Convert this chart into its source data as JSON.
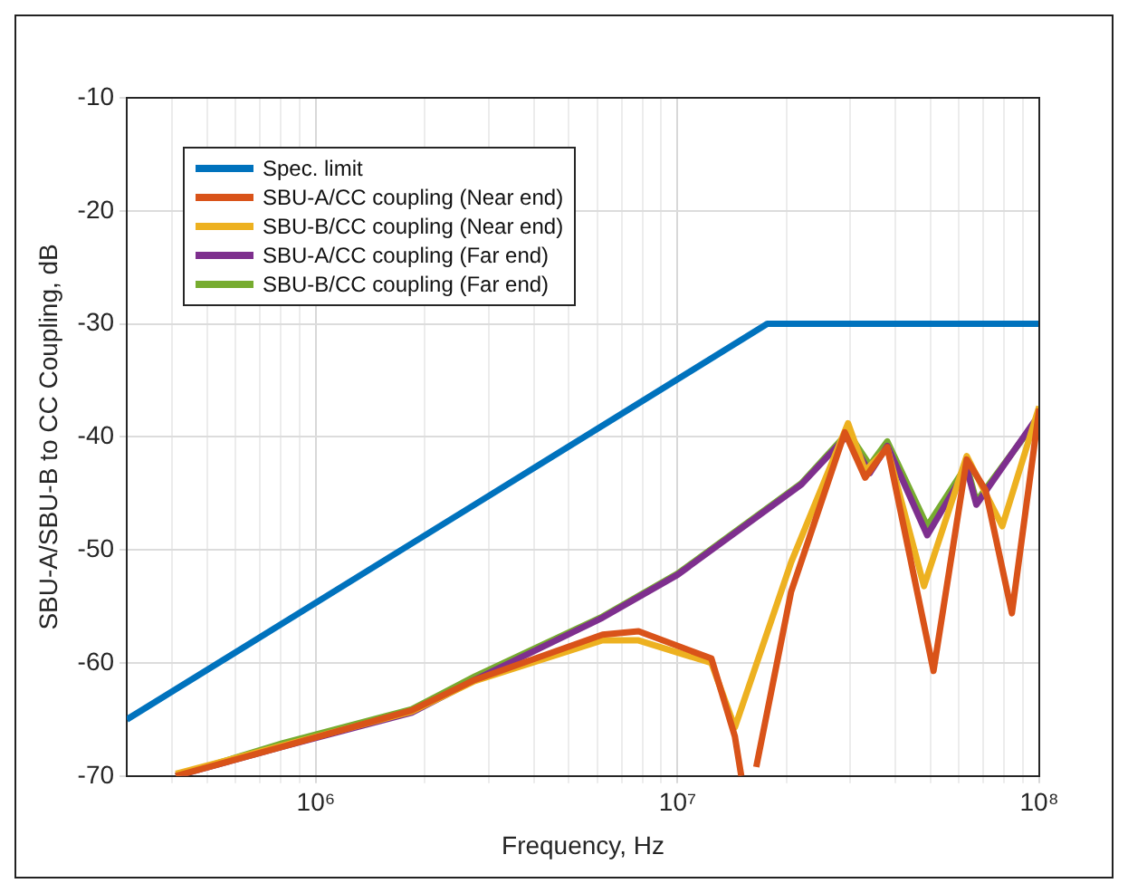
{
  "chart_data": {
    "type": "line",
    "xlabel": "Frequency, Hz",
    "ylabel": "SBU-A/SBU-B to CC Coupling, dB",
    "log": "x",
    "grid": true,
    "legend": "top left",
    "marker": "none",
    "line_style": "solid",
    "xlim": [
      300000,
      100000000
    ],
    "xticks": [
      {
        "value": 400000,
        "label": null
      },
      {
        "value": 500000,
        "label": null
      },
      {
        "value": 600000,
        "label": null
      },
      {
        "value": 700000,
        "label": null
      },
      {
        "value": 800000,
        "label": null
      },
      {
        "value": 900000,
        "label": null
      },
      {
        "value": 1000000,
        "label": "10⁶"
      },
      {
        "value": 2000000,
        "label": null
      },
      {
        "value": 3000000,
        "label": null
      },
      {
        "value": 4000000,
        "label": null
      },
      {
        "value": 5000000,
        "label": null
      },
      {
        "value": 6000000,
        "label": null
      },
      {
        "value": 7000000,
        "label": null
      },
      {
        "value": 8000000,
        "label": null
      },
      {
        "value": 9000000,
        "label": null
      },
      {
        "value": 10000000,
        "label": "10⁷"
      },
      {
        "value": 20000000,
        "label": null
      },
      {
        "value": 30000000,
        "label": null
      },
      {
        "value": 40000000,
        "label": null
      },
      {
        "value": 50000000,
        "label": null
      },
      {
        "value": 60000000,
        "label": null
      },
      {
        "value": 70000000,
        "label": null
      },
      {
        "value": 80000000,
        "label": null
      },
      {
        "value": 90000000,
        "label": null
      },
      {
        "value": 100000000,
        "label": "10⁸"
      }
    ],
    "ylim": [
      -70,
      -10
    ],
    "yticks": [
      -70,
      -60,
      -50,
      -40,
      -30,
      -20,
      -10
    ],
    "series": [
      {
        "name": "Spec. limit",
        "color": "#0072bd",
        "x": [
          300000,
          17700000,
          100000000
        ],
        "values": [
          -65,
          -30,
          -30
        ]
      },
      {
        "name": "SBU-A/CC coupling (Near end)",
        "color": "#d95319",
        "x": [
          410000,
          810000,
          1840000,
          2750000,
          6200000,
          7800000,
          12400000,
          14400000,
          15000000,
          16000000,
          16500000,
          20600000,
          29000000,
          33000000,
          38000000,
          51000000,
          63000000,
          71000000,
          84000000,
          100000000
        ],
        "values": [
          -70,
          -67.4,
          -64.2,
          -61.5,
          -57.5,
          -57.2,
          -59.6,
          -66.5,
          -70,
          null,
          -69.2,
          -53.7,
          -39.6,
          -43.6,
          -40.9,
          -60.7,
          -42,
          -44.7,
          -55.6,
          -37.5
        ]
      },
      {
        "name": "SBU-B/CC coupling (Near end)",
        "color": "#edb120",
        "x": [
          410000,
          810000,
          1840000,
          2750000,
          6200000,
          7800000,
          12400000,
          14400000,
          20600000,
          29600000,
          33000000,
          38000000,
          48000000,
          63000000,
          79000000,
          100000000
        ],
        "values": [
          -69.8,
          -67.3,
          -64.3,
          -61.6,
          -58,
          -58,
          -60,
          -65.7,
          -51.1,
          -38.8,
          -43,
          -41,
          -53.2,
          -41.7,
          -47.9,
          -37.3
        ]
      },
      {
        "name": "SBU-A/CC coupling (Far end)",
        "color": "#7e2f8e",
        "x": [
          410000,
          810000,
          1840000,
          2750000,
          6200000,
          10000000,
          22000000,
          29600000,
          34000000,
          38000000,
          49000000,
          63000000,
          67000000,
          100000000
        ],
        "values": [
          -70,
          -67.4,
          -64.4,
          -61.5,
          -56,
          -52.2,
          -44.2,
          -39.8,
          -43.2,
          -40.8,
          -48.7,
          -42.8,
          -46,
          -38
        ]
      },
      {
        "name": "SBU-B/CC coupling (Far end)",
        "color": "#77ac30",
        "x": [
          410000,
          810000,
          1840000,
          2750000,
          6200000,
          10000000,
          22000000,
          29600000,
          34000000,
          38000000,
          49000000,
          63000000,
          67000000,
          100000000
        ],
        "values": [
          -70,
          -67.1,
          -64.1,
          -61.2,
          -55.9,
          -52.1,
          -44.1,
          -39.6,
          -42.5,
          -40.4,
          -47.9,
          -42.5,
          -45.7,
          -38.2
        ]
      }
    ]
  }
}
